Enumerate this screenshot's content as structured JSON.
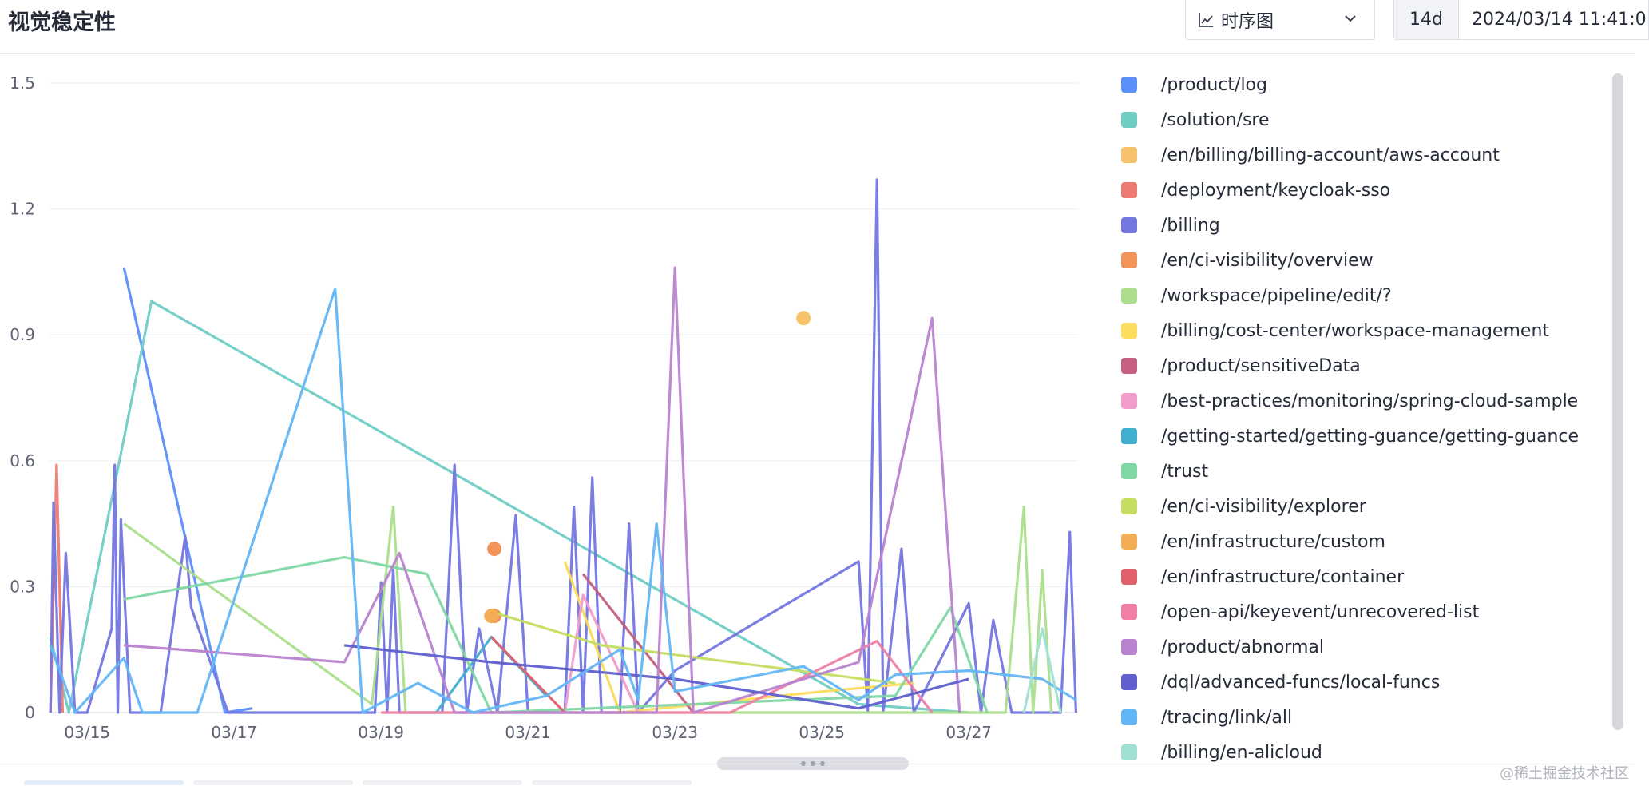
{
  "header": {
    "title": "视觉稳定性",
    "chart_type_label": "时序图",
    "duration": "14d",
    "time_range": "2024/03/14 11:41:0"
  },
  "watermark": "@稀土掘金技术社区",
  "legend": {
    "items": [
      {
        "label": "/product/log",
        "color": "#5b8ff9"
      },
      {
        "label": "/solution/sre",
        "color": "#6fcdc4"
      },
      {
        "label": "/en/billing/billing-account/aws-account",
        "color": "#f6c26b"
      },
      {
        "label": "/deployment/keycloak-sso",
        "color": "#ee7b73"
      },
      {
        "label": "/billing",
        "color": "#7476e0"
      },
      {
        "label": "/en/ci-visibility/overview",
        "color": "#f2935a"
      },
      {
        "label": "/workspace/pipeline/edit/?",
        "color": "#acde8d"
      },
      {
        "label": "/billing/cost-center/workspace-management",
        "color": "#fbdc5c"
      },
      {
        "label": "/product/sensitiveData",
        "color": "#c45f7f"
      },
      {
        "label": "/best-practices/monitoring/spring-cloud-sample",
        "color": "#f29ccb"
      },
      {
        "label": "/getting-started/getting-guance/getting-guance",
        "color": "#40afcd"
      },
      {
        "label": "/trust",
        "color": "#7fd7a4"
      },
      {
        "label": "/en/ci-visibility/explorer",
        "color": "#c5de62"
      },
      {
        "label": "/en/infrastructure/custom",
        "color": "#f2ad55"
      },
      {
        "label": "/en/infrastructure/container",
        "color": "#df5f6b"
      },
      {
        "label": "/open-api/keyevent/unrecovered-list",
        "color": "#f17fa5"
      },
      {
        "label": "/product/abnormal",
        "color": "#b983cf"
      },
      {
        "label": "/dql/advanced-funcs/local-funcs",
        "color": "#5f5fcf"
      },
      {
        "label": "/tracing/link/all",
        "color": "#63b6f6"
      },
      {
        "label": "/billing/en-alicloud",
        "color": "#9fe0d3"
      }
    ]
  },
  "chart_data": {
    "type": "line",
    "x_range": [
      "2024-03-14T11:41",
      "2024-03-28T11:41"
    ],
    "ylim": [
      0,
      1.5
    ],
    "y_ticks": [
      0,
      0.3,
      0.6,
      0.9,
      1.2,
      1.5
    ],
    "y_tick_labels": [
      "0",
      "0.3",
      "0.6",
      "0.9",
      "1.2",
      "1.5"
    ],
    "x_ticks": [
      "2024-03-15",
      "2024-03-17",
      "2024-03-19",
      "2024-03-21",
      "2024-03-23",
      "2024-03-25",
      "2024-03-27"
    ],
    "x_tick_labels": [
      "03/15",
      "03/17",
      "03/19",
      "03/21",
      "03/23",
      "03/25",
      "03/27"
    ],
    "grid": "horizontal",
    "legend_position": "right",
    "series": [
      {
        "name": "/product/log",
        "points": [
          [
            "2024-03-15T12:00",
            1.06
          ],
          [
            "2024-03-16T21:00",
            0.0
          ],
          [
            "2024-03-17T06:00",
            0.01
          ]
        ]
      },
      {
        "name": "/solution/sre",
        "points": [
          [
            "2024-03-14T12:00",
            0.18
          ],
          [
            "2024-03-14T18:00",
            0.0
          ],
          [
            "2024-03-15T21:00",
            0.98
          ],
          [
            "2024-03-25T12:00",
            0.02
          ],
          [
            "2024-03-27T00:00",
            0.0
          ]
        ]
      },
      {
        "name": "/en/billing/billing-account/aws-account",
        "points": [
          [
            "2024-03-24T18:00",
            0.94
          ]
        ]
      },
      {
        "name": "/deployment/keycloak-sso",
        "points": [
          [
            "2024-03-14T12:00",
            0.0
          ],
          [
            "2024-03-14T14:00",
            0.59
          ],
          [
            "2024-03-14T16:00",
            0.0
          ]
        ]
      },
      {
        "name": "/billing",
        "points": [
          [
            "2024-03-14T12:00",
            0.0
          ],
          [
            "2024-03-14T13:00",
            0.5
          ],
          [
            "2024-03-14T15:00",
            0.0
          ],
          [
            "2024-03-14T17:00",
            0.38
          ],
          [
            "2024-03-14T20:00",
            0.0
          ],
          [
            "2024-03-15T00:00",
            0.0
          ],
          [
            "2024-03-15T08:00",
            0.2
          ],
          [
            "2024-03-15T09:00",
            0.59
          ],
          [
            "2024-03-15T10:00",
            0.0
          ],
          [
            "2024-03-15T11:00",
            0.46
          ],
          [
            "2024-03-15T14:00",
            0.0
          ],
          [
            "2024-03-16T00:00",
            0.0
          ],
          [
            "2024-03-16T08:00",
            0.42
          ],
          [
            "2024-03-16T10:00",
            0.25
          ],
          [
            "2024-03-16T22:00",
            0.0
          ],
          [
            "2024-03-18T00:00",
            0.0
          ],
          [
            "2024-03-18T22:00",
            0.0
          ],
          [
            "2024-03-19T00:00",
            0.31
          ],
          [
            "2024-03-19T02:00",
            0.0
          ],
          [
            "2024-03-19T04:00",
            0.34
          ],
          [
            "2024-03-19T06:00",
            0.0
          ],
          [
            "2024-03-19T20:00",
            0.0
          ],
          [
            "2024-03-20T00:00",
            0.59
          ],
          [
            "2024-03-20T04:00",
            0.0
          ],
          [
            "2024-03-20T08:00",
            0.2
          ],
          [
            "2024-03-20T14:00",
            0.0
          ],
          [
            "2024-03-20T20:00",
            0.47
          ],
          [
            "2024-03-21T00:00",
            0.0
          ],
          [
            "2024-03-21T12:00",
            0.0
          ],
          [
            "2024-03-21T15:00",
            0.49
          ],
          [
            "2024-03-21T18:00",
            0.0
          ],
          [
            "2024-03-21T21:00",
            0.56
          ],
          [
            "2024-03-22T00:00",
            0.0
          ],
          [
            "2024-03-22T06:00",
            0.0
          ],
          [
            "2024-03-22T09:00",
            0.45
          ],
          [
            "2024-03-22T12:00",
            0.0
          ],
          [
            "2024-03-23T00:00",
            0.1
          ],
          [
            "2024-03-25T12:00",
            0.36
          ],
          [
            "2024-03-25T15:00",
            0.0
          ],
          [
            "2024-03-25T18:00",
            1.27
          ],
          [
            "2024-03-25T20:00",
            0.0
          ],
          [
            "2024-03-26T02:00",
            0.39
          ],
          [
            "2024-03-26T06:00",
            0.0
          ],
          [
            "2024-03-27T00:00",
            0.26
          ],
          [
            "2024-03-27T04:00",
            0.0
          ],
          [
            "2024-03-27T08:00",
            0.22
          ],
          [
            "2024-03-27T14:00",
            0.0
          ],
          [
            "2024-03-28T06:00",
            0.0
          ],
          [
            "2024-03-28T09:00",
            0.43
          ],
          [
            "2024-03-28T11:00",
            0.0
          ]
        ]
      },
      {
        "name": "/en/ci-visibility/overview",
        "points": [
          [
            "2024-03-20T13:00",
            0.39
          ],
          [
            "2024-03-20T13:00",
            0.23
          ]
        ]
      },
      {
        "name": "/workspace/pipeline/edit/?",
        "points": [
          [
            "2024-03-15T12:00",
            0.45
          ],
          [
            "2024-03-18T21:00",
            0.02
          ],
          [
            "2024-03-19T04:00",
            0.49
          ],
          [
            "2024-03-19T08:00",
            0.0
          ],
          [
            "2024-03-27T12:00",
            0.0
          ],
          [
            "2024-03-27T18:00",
            0.49
          ],
          [
            "2024-03-27T21:00",
            0.0
          ],
          [
            "2024-03-28T00:00",
            0.34
          ],
          [
            "2024-03-28T03:00",
            0.0
          ]
        ]
      },
      {
        "name": "/billing/cost-center/workspace-management",
        "points": [
          [
            "2024-03-21T12:00",
            0.36
          ],
          [
            "2024-03-22T06:00",
            0.0
          ],
          [
            "2024-03-25T00:00",
            0.05
          ],
          [
            "2024-03-26T06:00",
            0.07
          ]
        ]
      },
      {
        "name": "/product/sensitiveData",
        "points": [
          [
            "2024-03-21T18:00",
            0.33
          ],
          [
            "2024-03-23T06:00",
            0.0
          ]
        ]
      },
      {
        "name": "/best-practices/monitoring/spring-cloud-sample",
        "points": [
          [
            "2024-03-21T12:00",
            0.0
          ],
          [
            "2024-03-21T18:00",
            0.28
          ],
          [
            "2024-03-22T12:00",
            0.0
          ]
        ]
      },
      {
        "name": "/getting-started/getting-guance/getting-guance",
        "points": [
          [
            "2024-03-19T18:00",
            0.0
          ],
          [
            "2024-03-20T12:00",
            0.18
          ],
          [
            "2024-03-21T06:00",
            0.04
          ]
        ]
      },
      {
        "name": "/trust",
        "points": [
          [
            "2024-03-15T12:00",
            0.27
          ],
          [
            "2024-03-18T12:00",
            0.37
          ],
          [
            "2024-03-19T15:00",
            0.33
          ],
          [
            "2024-03-20T12:00",
            0.0
          ],
          [
            "2024-03-26T00:00",
            0.04
          ],
          [
            "2024-03-26T18:00",
            0.25
          ],
          [
            "2024-03-27T06:00",
            0.0
          ]
        ]
      },
      {
        "name": "/en/ci-visibility/explorer",
        "points": [
          [
            "2024-03-20T12:00",
            0.24
          ],
          [
            "2024-03-22T00:00",
            0.16
          ],
          [
            "2024-03-26T00:00",
            0.07
          ]
        ]
      },
      {
        "name": "/en/infrastructure/custom",
        "points": [
          [
            "2024-03-20T12:00",
            0.23
          ]
        ]
      },
      {
        "name": "/en/infrastructure/container",
        "points": [
          [
            "2024-03-20T12:00",
            0.18
          ],
          [
            "2024-03-21T12:00",
            0.0
          ]
        ]
      },
      {
        "name": "/open-api/keyevent/unrecovered-list",
        "points": [
          [
            "2024-03-19T00:00",
            0.0
          ],
          [
            "2024-03-23T18:00",
            0.0
          ],
          [
            "2024-03-25T18:00",
            0.17
          ],
          [
            "2024-03-26T12:00",
            0.0
          ]
        ]
      },
      {
        "name": "/product/abnormal",
        "points": [
          [
            "2024-03-15T12:00",
            0.16
          ],
          [
            "2024-03-18T12:00",
            0.12
          ],
          [
            "2024-03-19T06:00",
            0.38
          ],
          [
            "2024-03-20T00:00",
            0.0
          ],
          [
            "2024-03-22T18:00",
            0.0
          ],
          [
            "2024-03-23T00:00",
            1.06
          ],
          [
            "2024-03-23T06:00",
            0.0
          ],
          [
            "2024-03-25T12:00",
            0.12
          ],
          [
            "2024-03-26T12:00",
            0.94
          ],
          [
            "2024-03-26T21:00",
            0.0
          ]
        ]
      },
      {
        "name": "/dql/advanced-funcs/local-funcs",
        "points": [
          [
            "2024-03-18T12:00",
            0.16
          ],
          [
            "2024-03-20T12:00",
            0.12
          ],
          [
            "2024-03-23T00:00",
            0.08
          ],
          [
            "2024-03-25T12:00",
            0.01
          ],
          [
            "2024-03-27T00:00",
            0.08
          ]
        ]
      },
      {
        "name": "/tracing/link/all",
        "points": [
          [
            "2024-03-14T12:00",
            0.16
          ],
          [
            "2024-03-14T20:00",
            0.0
          ],
          [
            "2024-03-15T12:00",
            0.13
          ],
          [
            "2024-03-15T18:00",
            0.0
          ],
          [
            "2024-03-16T12:00",
            0.0
          ],
          [
            "2024-03-18T09:00",
            1.01
          ],
          [
            "2024-03-18T18:00",
            0.0
          ],
          [
            "2024-03-19T12:00",
            0.07
          ],
          [
            "2024-03-20T06:00",
            0.0
          ],
          [
            "2024-03-21T06:00",
            0.04
          ],
          [
            "2024-03-22T06:00",
            0.15
          ],
          [
            "2024-03-22T12:00",
            0.03
          ],
          [
            "2024-03-22T18:00",
            0.45
          ],
          [
            "2024-03-23T00:00",
            0.05
          ],
          [
            "2024-03-24T18:00",
            0.11
          ],
          [
            "2024-03-25T12:00",
            0.03
          ],
          [
            "2024-03-26T00:00",
            0.09
          ],
          [
            "2024-03-27T00:00",
            0.1
          ],
          [
            "2024-03-28T00:00",
            0.08
          ],
          [
            "2024-03-28T11:00",
            0.03
          ]
        ]
      },
      {
        "name": "/billing/en-alicloud",
        "points": [
          [
            "2024-03-27T18:00",
            0.0
          ],
          [
            "2024-03-28T00:00",
            0.2
          ],
          [
            "2024-03-28T06:00",
            0.0
          ]
        ]
      }
    ]
  }
}
